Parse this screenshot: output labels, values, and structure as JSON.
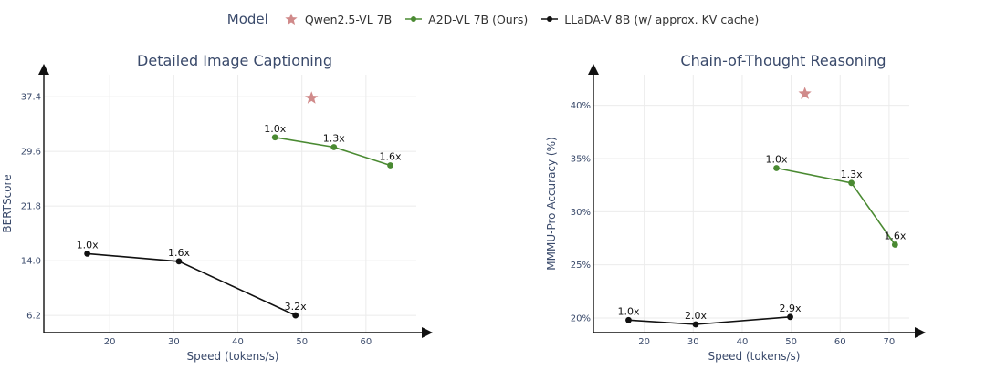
{
  "legend": {
    "title": "Model",
    "items": [
      {
        "label": "Qwen2.5-VL 7B",
        "color": "#d08a8a",
        "marker": "star"
      },
      {
        "label": "A2D-VL 7B (Ours)",
        "color": "#4a8a32",
        "marker": "circle"
      },
      {
        "label": "LLaDA-V 8B (w/ approx. KV cache)",
        "color": "#111111",
        "marker": "circle"
      }
    ]
  },
  "chart_data": [
    {
      "type": "line",
      "title": "Detailed Image Captioning",
      "xlabel": "Speed (tokens/s)",
      "ylabel": "BERTScore",
      "xlim": [
        10,
        67
      ],
      "ylim": [
        4,
        39.5
      ],
      "xticks": [
        20,
        30,
        40,
        50,
        60
      ],
      "xtick_labels": [
        "20",
        "30",
        "40",
        "50",
        "60"
      ],
      "yticks": [
        6.2,
        14.0,
        21.8,
        29.6,
        37.4
      ],
      "ytick_labels": [
        "6.2",
        "14.0",
        "21.8",
        "29.6",
        "37.4"
      ],
      "grid": true,
      "series": [
        {
          "name": "Qwen2.5-VL 7B",
          "color": "#d08a8a",
          "marker": "star",
          "points": [
            {
              "x": 51.5,
              "y": 37.2,
              "label": ""
            }
          ]
        },
        {
          "name": "A2D-VL 7B (Ours)",
          "color": "#4a8a32",
          "marker": "circle",
          "points": [
            {
              "x": 45.8,
              "y": 31.6,
              "label": "1.0x"
            },
            {
              "x": 55.0,
              "y": 30.2,
              "label": "1.3x"
            },
            {
              "x": 63.8,
              "y": 27.6,
              "label": "1.6x"
            }
          ]
        },
        {
          "name": "LLaDA-V 8B (w/ approx. KV cache)",
          "color": "#111111",
          "marker": "circle",
          "points": [
            {
              "x": 16.5,
              "y": 15.0,
              "label": "1.0x"
            },
            {
              "x": 30.8,
              "y": 13.9,
              "label": "1.6x"
            },
            {
              "x": 49.0,
              "y": 6.2,
              "label": "3.2x"
            }
          ]
        }
      ]
    },
    {
      "type": "line",
      "title": "Chain-of-Thought Reasoning",
      "xlabel": "Speed (tokens/s)",
      "ylabel": "MMMU-Pro Accuracy (%)",
      "xlim": [
        10,
        73
      ],
      "ylim": [
        18.8,
        42.2
      ],
      "xticks": [
        20,
        30,
        40,
        50,
        60,
        70
      ],
      "xtick_labels": [
        "20",
        "30",
        "40",
        "50",
        "60",
        "70"
      ],
      "yticks": [
        20,
        25,
        30,
        35,
        40
      ],
      "ytick_labels": [
        "20%",
        "25%",
        "30%",
        "35%",
        "40%"
      ],
      "grid": true,
      "series": [
        {
          "name": "Qwen2.5-VL 7B",
          "color": "#d08a8a",
          "marker": "star",
          "points": [
            {
              "x": 52.8,
              "y": 41.1,
              "label": ""
            }
          ]
        },
        {
          "name": "A2D-VL 7B (Ours)",
          "color": "#4a8a32",
          "marker": "circle",
          "points": [
            {
              "x": 47.0,
              "y": 34.1,
              "label": "1.0x"
            },
            {
              "x": 62.3,
              "y": 32.7,
              "label": "1.3x"
            },
            {
              "x": 71.2,
              "y": 26.9,
              "label": "1.6x"
            }
          ]
        },
        {
          "name": "LLaDA-V 8B (w/ approx. KV cache)",
          "color": "#111111",
          "marker": "circle",
          "points": [
            {
              "x": 16.8,
              "y": 19.8,
              "label": "1.0x"
            },
            {
              "x": 30.5,
              "y": 19.4,
              "label": "2.0x"
            },
            {
              "x": 49.8,
              "y": 20.1,
              "label": "2.9x"
            }
          ]
        }
      ]
    }
  ]
}
